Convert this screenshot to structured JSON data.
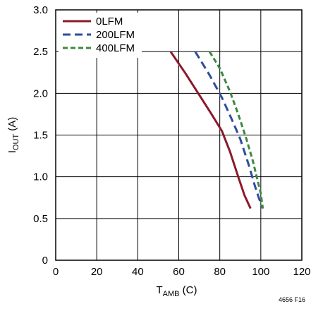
{
  "chart_data": {
    "type": "line",
    "xlabel": {
      "main": "T",
      "sub": "AMB",
      "rest": " (C)"
    },
    "ylabel": {
      "main": "I",
      "sub": "OUT",
      "rest": " (A)"
    },
    "xlim": [
      0,
      120
    ],
    "ylim": [
      0,
      3.0
    ],
    "x_ticks": [
      "0",
      "20",
      "40",
      "60",
      "80",
      "100",
      "120"
    ],
    "y_ticks": [
      "0",
      "0.5",
      "1.0",
      "1.5",
      "2.0",
      "2.5",
      "3.0"
    ],
    "grid": true,
    "legend_position": "top-left",
    "series": [
      {
        "name": "0LFM",
        "color": "#8b1a2b",
        "dash": "solid",
        "points": [
          [
            56,
            2.5
          ],
          [
            63,
            2.25
          ],
          [
            70,
            1.98
          ],
          [
            76,
            1.75
          ],
          [
            81,
            1.55
          ],
          [
            85,
            1.3
          ],
          [
            89,
            1.0
          ],
          [
            92,
            0.78
          ],
          [
            95,
            0.62
          ]
        ]
      },
      {
        "name": "200LFM",
        "color": "#2e4e9a",
        "dash": "dashed",
        "points": [
          [
            68,
            2.5
          ],
          [
            75,
            2.22
          ],
          [
            81,
            1.95
          ],
          [
            86,
            1.68
          ],
          [
            90,
            1.45
          ],
          [
            94,
            1.15
          ],
          [
            97,
            0.9
          ],
          [
            99,
            0.75
          ],
          [
            101,
            0.62
          ]
        ]
      },
      {
        "name": "400LFM",
        "color": "#3a8a3e",
        "dash": "dashed",
        "points": [
          [
            75,
            2.5
          ],
          [
            80,
            2.3
          ],
          [
            85,
            2.02
          ],
          [
            89,
            1.75
          ],
          [
            93,
            1.45
          ],
          [
            96,
            1.2
          ],
          [
            98,
            1.0
          ],
          [
            100,
            0.8
          ],
          [
            101,
            0.62
          ]
        ]
      }
    ]
  },
  "footnote": "4656 F16"
}
